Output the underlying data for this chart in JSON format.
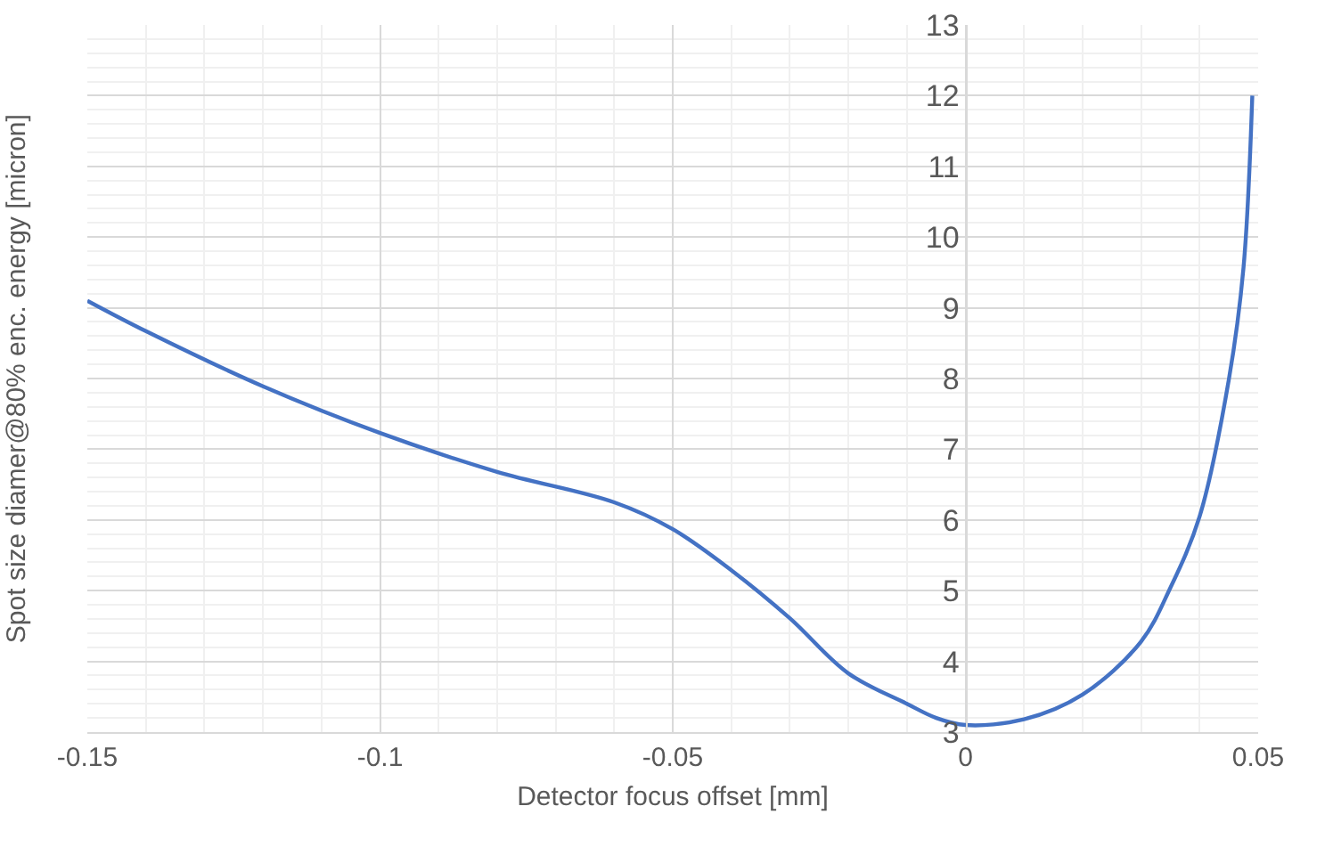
{
  "chart_data": {
    "type": "line",
    "xlabel": "Detector focus offset [mm]",
    "ylabel": "Spot size diamer@80% enc. energy [micron]",
    "x": [
      -0.15,
      -0.14,
      -0.12,
      -0.1,
      -0.08,
      -0.06,
      -0.05,
      -0.04,
      -0.03,
      -0.02,
      -0.01,
      -0.005,
      0,
      0.01,
      0.02,
      0.03,
      0.035,
      0.04,
      0.045,
      0.0475,
      0.049
    ],
    "series": [
      {
        "color": "#4472c4",
        "values": [
          9.1,
          8.67,
          7.89,
          7.23,
          6.68,
          6.25,
          5.87,
          5.29,
          4.61,
          3.83,
          3.4,
          3.2,
          3.1,
          3.18,
          3.53,
          4.28,
          5.04,
          6.05,
          7.99,
          9.57,
          12.0
        ]
      }
    ],
    "xlim": [
      -0.15,
      0.05
    ],
    "xticks": [
      -0.15,
      -0.1,
      -0.05,
      0,
      0.05
    ],
    "ylim": [
      3,
      13
    ],
    "yticks": [
      3,
      4,
      5,
      6,
      7,
      8,
      9,
      10,
      11,
      12,
      13
    ],
    "grid": true,
    "marker": "none",
    "line_style": "solid"
  }
}
